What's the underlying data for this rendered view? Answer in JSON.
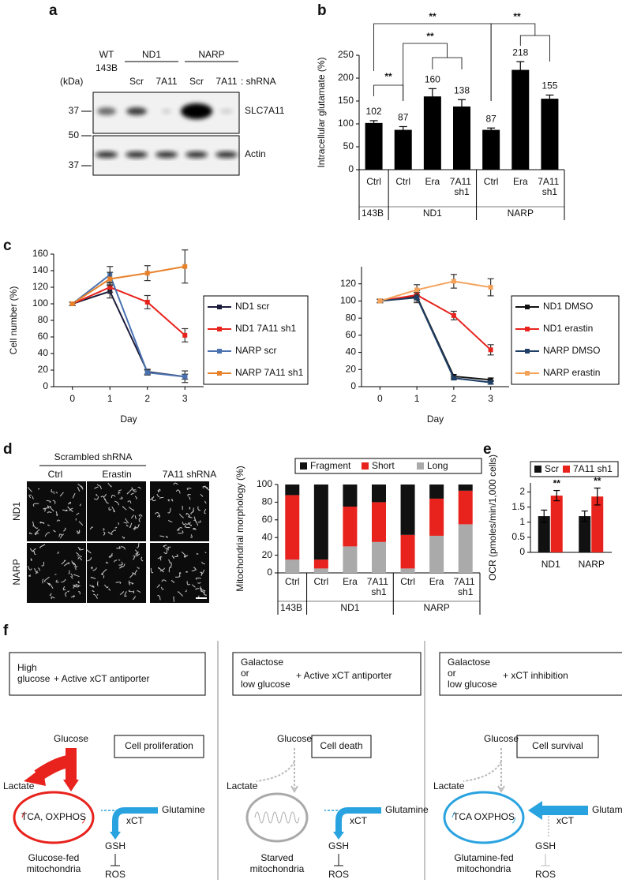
{
  "panel_labels": [
    "a",
    "b",
    "c",
    "d",
    "e",
    "f"
  ],
  "blot": {
    "kda": "(kDa)",
    "wt": "WT",
    "cell_143b": "143B",
    "nd1": "ND1",
    "narp": "NARP",
    "lanes": [
      "Scr",
      "7A11",
      "Scr",
      "7A11"
    ],
    "shrna": ": shRNA",
    "markers": [
      "37",
      "50",
      "37"
    ],
    "bands": [
      "SLC7A11",
      "Actin"
    ]
  },
  "microscopy": {
    "group": "Scrambled shRNA",
    "columns": [
      "Ctrl",
      "Erastin",
      "7A11 shRNA"
    ],
    "rows": [
      "ND1",
      "NARP"
    ]
  },
  "chart_data": [
    {
      "type": "bar",
      "ylabel": "Intracellular glutamate (%)",
      "categories": [
        "Ctrl",
        "Ctrl",
        "Era",
        "7A11 sh1",
        "Ctrl",
        "Era",
        "7A11 sh1"
      ],
      "groups": [
        "143B",
        "ND1",
        "NARP"
      ],
      "values": [
        102,
        87,
        160,
        138,
        87,
        218,
        155
      ],
      "errors": [
        5,
        7,
        17,
        15,
        4,
        18,
        8
      ],
      "color": "#000000",
      "ylim": [
        0,
        250
      ],
      "yticks": [
        0,
        50,
        100,
        150,
        200,
        250
      ],
      "annotations": [
        "**",
        "**",
        "**",
        "**"
      ]
    },
    {
      "type": "line",
      "xlabel": "Day",
      "ylabel": "Cell number (%)",
      "x": [
        0,
        1,
        2,
        3
      ],
      "xlim": [
        -0.5,
        3.5
      ],
      "xticks": [
        0,
        1,
        2,
        3
      ],
      "ylim": [
        0,
        160
      ],
      "yticks": [
        0,
        20,
        40,
        60,
        80,
        100,
        120,
        140,
        160
      ],
      "series": [
        {
          "name": "ND1 scr",
          "color": "#1c1c3c",
          "values": [
            100,
            115,
            18,
            12
          ],
          "errors": [
            2,
            8,
            3,
            3
          ]
        },
        {
          "name": "ND1 7A11 sh1",
          "color": "#e8221c",
          "values": [
            100,
            120,
            102,
            62
          ],
          "errors": [
            2,
            6,
            8,
            8
          ]
        },
        {
          "name": "NARP scr",
          "color": "#4a72b0",
          "values": [
            100,
            135,
            17,
            12
          ],
          "errors": [
            2,
            10,
            3,
            7
          ]
        },
        {
          "name": "NARP 7A11 sh1",
          "color": "#e8822a",
          "values": [
            100,
            130,
            137,
            145
          ],
          "errors": [
            2,
            8,
            9,
            20
          ]
        }
      ]
    },
    {
      "type": "line",
      "xlabel": "Day",
      "x": [
        0,
        1,
        2,
        3
      ],
      "xlim": [
        -0.5,
        3.5
      ],
      "xticks": [
        0,
        1,
        2,
        3
      ],
      "ylim": [
        0,
        140
      ],
      "yticks": [
        0,
        20,
        40,
        60,
        80,
        100,
        120
      ],
      "series": [
        {
          "name": "ND1 DMSO",
          "color": "#111111",
          "values": [
            100,
            105,
            12,
            8
          ],
          "errors": [
            2,
            5,
            2,
            2
          ]
        },
        {
          "name": "ND1 erastin",
          "color": "#e8221c",
          "values": [
            100,
            107,
            83,
            43
          ],
          "errors": [
            2,
            5,
            5,
            6
          ]
        },
        {
          "name": "NARP DMSO",
          "color": "#1f3f66",
          "values": [
            100,
            104,
            10,
            5
          ],
          "errors": [
            2,
            6,
            2,
            2
          ]
        },
        {
          "name": "NARP erastin",
          "color": "#f4a25a",
          "values": [
            100,
            113,
            123,
            116
          ],
          "errors": [
            2,
            6,
            8,
            10
          ]
        }
      ]
    },
    {
      "type": "stacked_bar",
      "ylabel": "Mitochondrial morphology (%)",
      "categories": [
        "Ctrl",
        "Ctrl",
        "Era",
        "7A11 sh1",
        "Ctrl",
        "Era",
        "7A11 sh1"
      ],
      "groups": [
        "143B",
        "ND1",
        "NARP"
      ],
      "ylim": [
        0,
        100
      ],
      "yticks": [
        0,
        20,
        40,
        60,
        80,
        100
      ],
      "series": [
        {
          "name": "Fragment",
          "color": "#111111",
          "values": [
            12,
            85,
            25,
            20,
            57,
            16,
            7
          ]
        },
        {
          "name": "Short",
          "color": "#e8221c",
          "values": [
            73,
            10,
            45,
            45,
            38,
            42,
            38
          ]
        },
        {
          "name": "Long",
          "color": "#aaaaaa",
          "values": [
            15,
            5,
            30,
            35,
            5,
            42,
            55
          ]
        }
      ]
    },
    {
      "type": "grouped_bar",
      "ylabel": "OCR (pmoles/min/1,000 cells)",
      "categories": [
        "ND1",
        "NARP"
      ],
      "ylim": [
        0,
        2.3
      ],
      "yticks": [
        0,
        0.5,
        1,
        1.5,
        2
      ],
      "series": [
        {
          "name": "Scr",
          "color": "#111111",
          "values": [
            1.2,
            1.2
          ],
          "errors": [
            0.2,
            0.17
          ]
        },
        {
          "name": "7A11 sh1",
          "color": "#e8221c",
          "values": [
            1.88,
            1.85
          ],
          "errors": [
            0.17,
            0.28
          ]
        }
      ],
      "annotations": [
        "**",
        "**"
      ]
    }
  ],
  "diagram": {
    "columns": [
      {
        "condition": [
          "High",
          "glucose"
        ],
        "treatment": "+ Active xCT antiporter",
        "outcome": "Cell proliferation",
        "glucose": "Glucose",
        "lactate": "Lactate",
        "glutamine": "Glutamine",
        "xct": "xCT",
        "gsh": "GSH",
        "ros": "ROS",
        "mito_text": "TCA, OXPHOS",
        "mito_label": [
          "Glucose-fed",
          "mitochondria"
        ]
      },
      {
        "condition": [
          "Galactose",
          "or",
          "low glucose"
        ],
        "treatment": "+ Active xCT antiporter",
        "outcome": "Cell death",
        "glucose": "Glucose",
        "lactate": "Lactate",
        "glutamine": "Glutamine",
        "xct": "xCT",
        "gsh": "GSH",
        "ros": "ROS",
        "mito_label": [
          "Starved",
          "mitochondria"
        ]
      },
      {
        "condition": [
          "Galactose",
          "or",
          "low glucose"
        ],
        "treatment": "+ xCT inhibition",
        "outcome": "Cell survival",
        "glucose": "Glucose",
        "lactate": "Lactate",
        "glutamine": "Glutamine",
        "xct": "xCT",
        "gsh": "GSH",
        "ros": "ROS",
        "mito_text": "TCA OXPHOS",
        "mito_label": [
          "Glutamine-fed",
          "mitochondria"
        ]
      }
    ]
  }
}
